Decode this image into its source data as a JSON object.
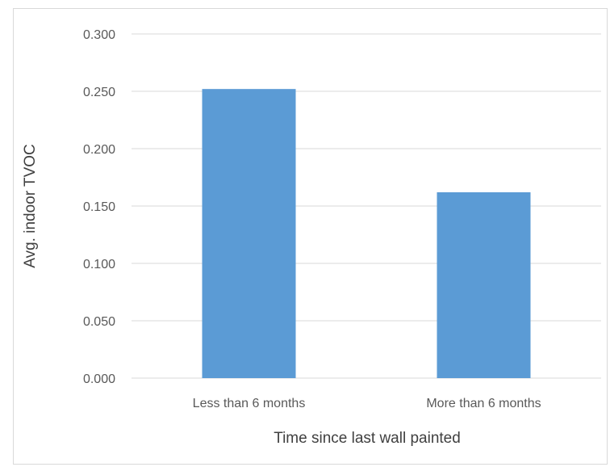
{
  "chart_data": {
    "type": "bar",
    "categories": [
      "Less than 6 months",
      "More than 6 months"
    ],
    "values": [
      0.252,
      0.162
    ],
    "title": "",
    "xlabel": "Time since last wall painted",
    "ylabel": "Avg. indoor TVOC",
    "ylim": [
      0,
      0.3
    ],
    "yticks": [
      "0.000",
      "0.050",
      "0.100",
      "0.150",
      "0.200",
      "0.250",
      "0.300"
    ],
    "ytick_values": [
      0,
      0.05,
      0.1,
      0.15,
      0.2,
      0.25,
      0.3
    ],
    "grid": true,
    "legend": "none",
    "bar_color": "#5b9bd5",
    "grid_color": "#d9d9d9"
  }
}
